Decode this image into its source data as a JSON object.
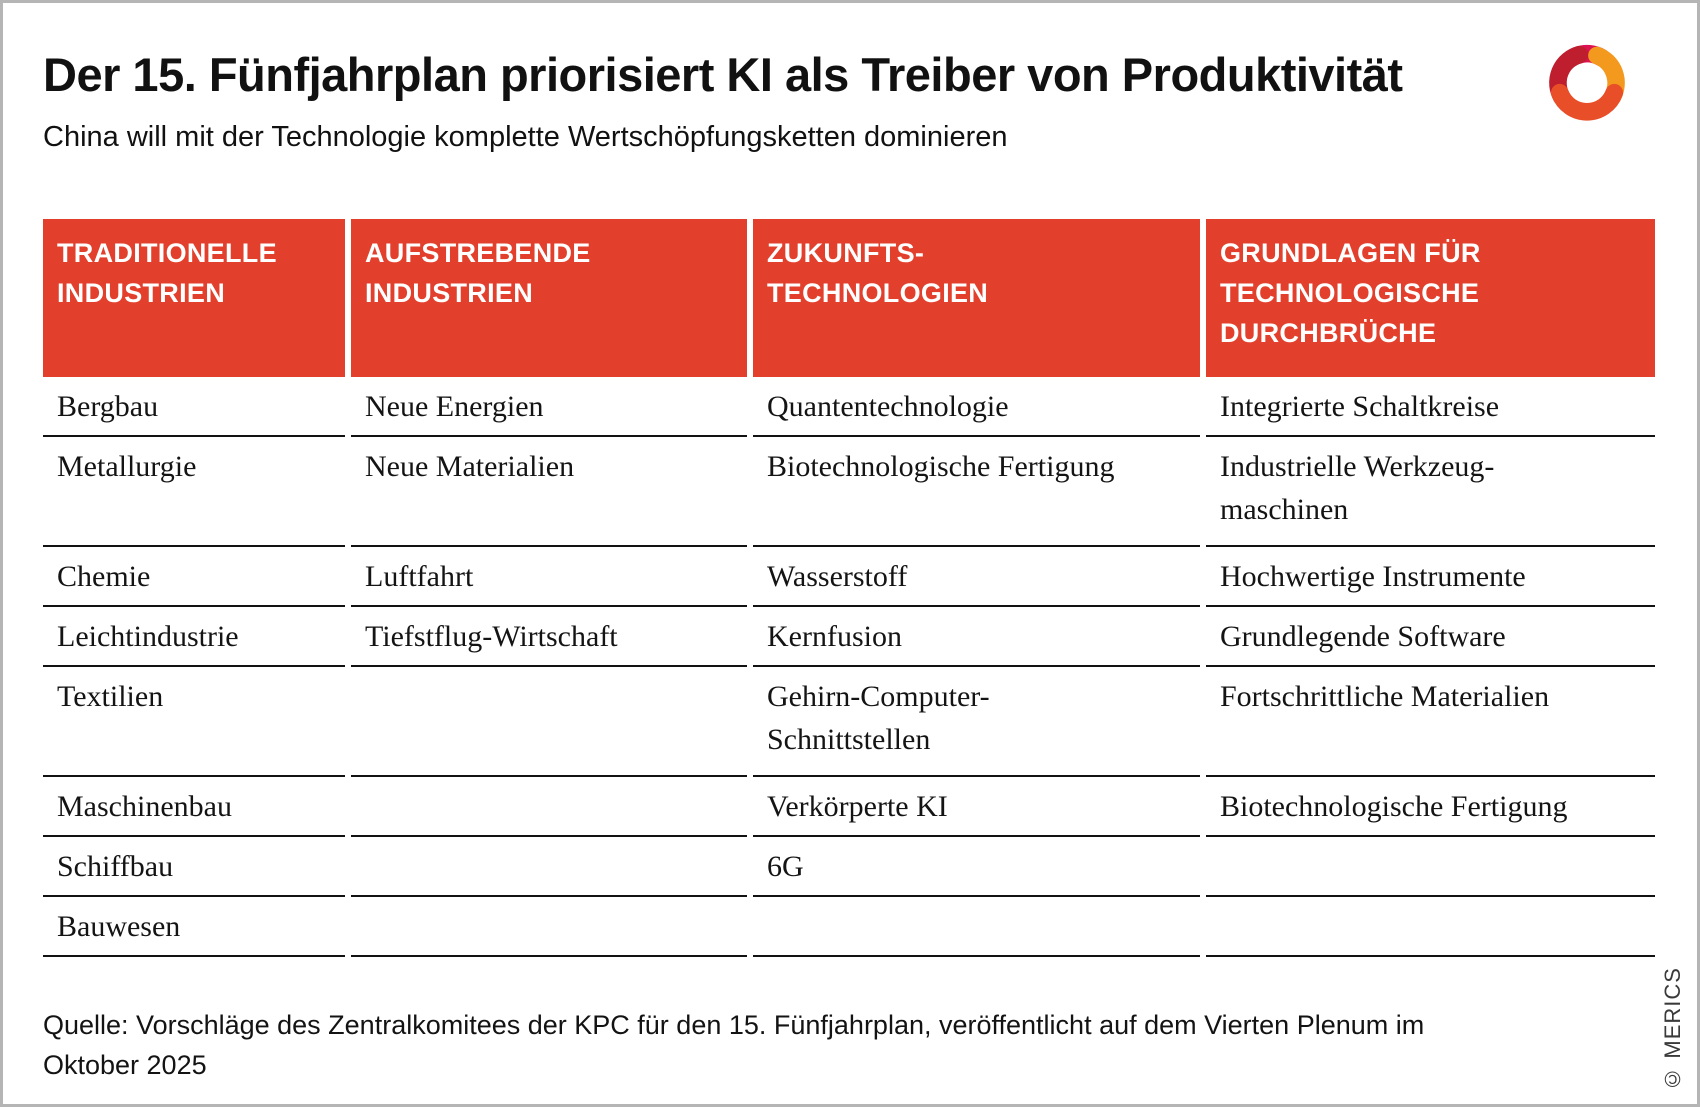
{
  "header": {
    "title": "Der 15. Fünfjahrplan priorisiert KI als Treiber von Produktivität",
    "subtitle": "China will mit der Technologie komplette Wertschöpfungsketten dominieren"
  },
  "logo": {
    "name": "merics-logo",
    "colors": {
      "magenta": "#DC1352",
      "dark_red": "#BE1E2E",
      "orange": "#F39A1E",
      "vermillion": "#E84E28"
    }
  },
  "chart_data": {
    "type": "table",
    "title": "Der 15. Fünfjahrplan priorisiert KI als Treiber von Produktivität",
    "subtitle": "China will mit der Technologie komplette Wertschöpfungsketten dominieren",
    "columns": [
      "TRADITIONELLE\nINDUSTRIEN",
      "AUFSTREBENDE\nINDUSTRIEN",
      "ZUKUNFTS-\nTECHNOLOGIEN",
      "GRUNDLAGEN FÜR\nTECHNOLOGISCHE\nDURCHBRÜCHE"
    ],
    "rows": [
      [
        "Bergbau",
        "Neue Energien",
        "Quantentechnologie",
        "Integrierte Schaltkreise"
      ],
      [
        "Metallurgie",
        "Neue Materialien",
        "Biotechnologische Fertigung",
        "Industrielle Werkzeug-\nmaschinen"
      ],
      [
        "Chemie",
        "Luftfahrt",
        "Wasserstoff",
        "Hochwertige Instrumente"
      ],
      [
        "Leichtindustrie",
        "Tiefstflug-Wirtschaft",
        "Kernfusion",
        "Grundlegende Software"
      ],
      [
        "Textilien",
        "",
        "Gehirn-Computer-\nSchnittstellen",
        "Fortschrittliche Materialien"
      ],
      [
        "Maschinenbau",
        "",
        "Verkörperte KI",
        "Biotechnologische Fertigung"
      ],
      [
        "Schiffbau",
        "",
        "6G",
        ""
      ],
      [
        "Bauwesen",
        "",
        "",
        ""
      ]
    ],
    "source": "Quelle: Vorschläge des Zentralkomitees der KPC für den 15. Fünfjahrplan, veröffentlicht auf dem Vierten Plenum im Oktober 2025",
    "layout_hints": "4-column matrix table, red header band, black row rules with white column gaps"
  },
  "footer": {
    "source": "Quelle: Vorschläge des Zentralkomitees der KPC für den 15. Fünfjahrplan, veröffentlicht auf dem Vierten Plenum im\nOktober 2025",
    "copyright": "© MERICS"
  },
  "colors": {
    "accent_red": "#E2402C",
    "rule_black": "#121212",
    "text": "#1A1A1A",
    "page_border": "#B5B5B5"
  }
}
